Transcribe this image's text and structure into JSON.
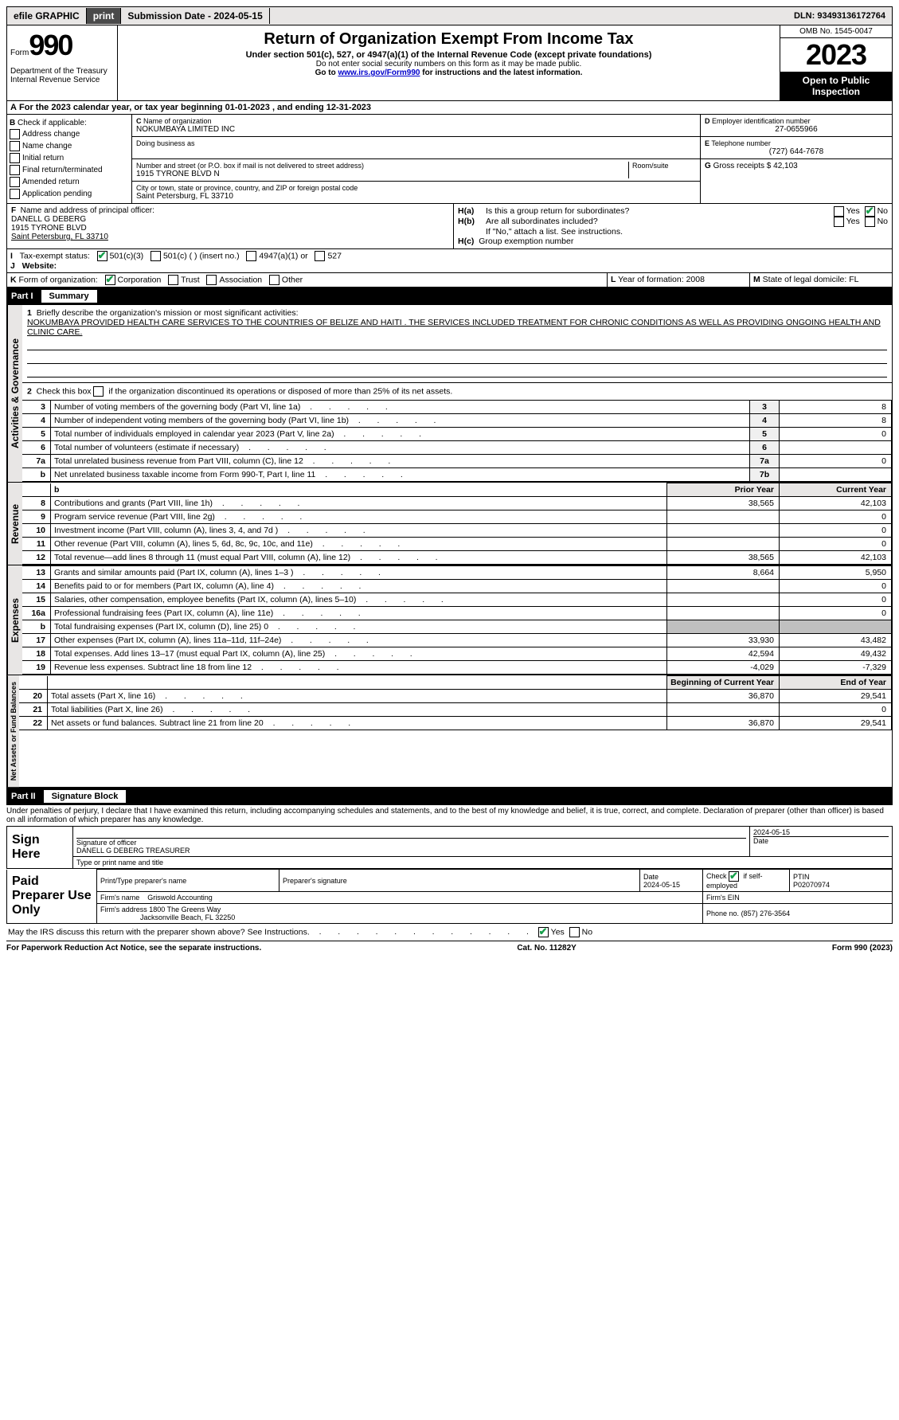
{
  "topbar": {
    "efile": "efile GRAPHIC",
    "print": "print",
    "subdate_label": "Submission Date - 2024-05-15",
    "dln": "DLN: 93493136172764"
  },
  "header": {
    "form": "Form",
    "formno": "990",
    "dept": "Department of the Treasury Internal Revenue Service",
    "title": "Return of Organization Exempt From Income Tax",
    "sub": "Under section 501(c), 527, or 4947(a)(1) of the Internal Revenue Code (except private foundations)",
    "note1": "Do not enter social security numbers on this form as it may be made public.",
    "note2": "Go to ",
    "link": "www.irs.gov/Form990",
    "note3": " for instructions and the latest information.",
    "omb": "OMB No. 1545-0047",
    "year": "2023",
    "public": "Open to Public Inspection"
  },
  "periodA": "For the 2023 calendar year, or tax year beginning 01-01-2023    , and ending 12-31-2023",
  "B": {
    "title": "Check if applicable:",
    "items": [
      "Address change",
      "Name change",
      "Initial return",
      "Final return/terminated",
      "Amended return",
      "Application pending"
    ]
  },
  "C": {
    "namelabel": "Name of organization",
    "name": "NOKUMBAYA LIMITED INC",
    "dba": "Doing business as",
    "addrlabel": "Number and street (or P.O. box if mail is not delivered to street address)",
    "room": "Room/suite",
    "addr": "1915 TYRONE BLVD N",
    "citylabel": "City or town, state or province, country, and ZIP or foreign postal code",
    "city": "Saint Petersburg, FL  33710"
  },
  "D": {
    "label": "Employer identification number",
    "val": "27-0655966"
  },
  "E": {
    "label": "Telephone number",
    "val": "(727) 644-7678"
  },
  "G": {
    "label": "Gross receipts $",
    "val": "42,103"
  },
  "F": {
    "label": "Name and address of principal officer:",
    "name": "DANELL G DEBERG",
    "addr1": "1915 TYRONE BLVD",
    "addr2": "Saint Petersburg, FL  33710"
  },
  "H": {
    "a": "Is this a group return for subordinates?",
    "b": "Are all subordinates included?",
    "bnote": "If \"No,\" attach a list. See instructions.",
    "c": "Group exemption number",
    "yes": "Yes",
    "no": "No"
  },
  "I": {
    "label": "Tax-exempt status:",
    "opts": [
      "501(c)(3)",
      "501(c) (  ) (insert no.)",
      "4947(a)(1) or",
      "527"
    ]
  },
  "J": {
    "label": "Website:"
  },
  "K": {
    "label": "Form of organization:",
    "opts": [
      "Corporation",
      "Trust",
      "Association",
      "Other"
    ]
  },
  "L": {
    "label": "Year of formation:",
    "val": "2008"
  },
  "M": {
    "label": "State of legal domicile:",
    "val": "FL"
  },
  "part1": {
    "num": "Part I",
    "title": "Summary"
  },
  "vert": {
    "ag": "Activities & Governance",
    "rev": "Revenue",
    "exp": "Expenses",
    "na": "Net Assets or Fund Balances"
  },
  "line1": {
    "label": "Briefly describe the organization's mission or most significant activities:",
    "text": "NOKUMBAYA PROVIDED HEALTH CARE SERVICES TO THE COUNTRIES OF BELIZE AND HAITI . THE SERVICES INCLUDED TREATMENT FOR CHRONIC CONDITIONS AS WELL AS PROVIDING ONGOING HEALTH AND CLINIC CARE."
  },
  "line2": "Check this box       if the organization discontinued its operations or disposed of more than 25% of its net assets.",
  "lines_ag": [
    {
      "n": "3",
      "d": "Number of voting members of the governing body (Part VI, line 1a)",
      "b": "3",
      "v": "8"
    },
    {
      "n": "4",
      "d": "Number of independent voting members of the governing body (Part VI, line 1b)",
      "b": "4",
      "v": "8"
    },
    {
      "n": "5",
      "d": "Total number of individuals employed in calendar year 2023 (Part V, line 2a)",
      "b": "5",
      "v": "0"
    },
    {
      "n": "6",
      "d": "Total number of volunteers (estimate if necessary)",
      "b": "6",
      "v": ""
    },
    {
      "n": "7a",
      "d": "Total unrelated business revenue from Part VIII, column (C), line 12",
      "b": "7a",
      "v": "0"
    },
    {
      "n": "b",
      "d": "Net unrelated business taxable income from Form 990-T, Part I, line 11",
      "b": "7b",
      "v": ""
    }
  ],
  "yearhdr": {
    "prior": "Prior Year",
    "curr": "Current Year"
  },
  "lines_rev": [
    {
      "n": "8",
      "d": "Contributions and grants (Part VIII, line 1h)",
      "p": "38,565",
      "c": "42,103"
    },
    {
      "n": "9",
      "d": "Program service revenue (Part VIII, line 2g)",
      "p": "",
      "c": "0"
    },
    {
      "n": "10",
      "d": "Investment income (Part VIII, column (A), lines 3, 4, and 7d )",
      "p": "",
      "c": "0"
    },
    {
      "n": "11",
      "d": "Other revenue (Part VIII, column (A), lines 5, 6d, 8c, 9c, 10c, and 11e)",
      "p": "",
      "c": "0"
    },
    {
      "n": "12",
      "d": "Total revenue—add lines 8 through 11 (must equal Part VIII, column (A), line 12)",
      "p": "38,565",
      "c": "42,103"
    }
  ],
  "lines_exp": [
    {
      "n": "13",
      "d": "Grants and similar amounts paid (Part IX, column (A), lines 1–3 )",
      "p": "8,664",
      "c": "5,950"
    },
    {
      "n": "14",
      "d": "Benefits paid to or for members (Part IX, column (A), line 4)",
      "p": "",
      "c": "0"
    },
    {
      "n": "15",
      "d": "Salaries, other compensation, employee benefits (Part IX, column (A), lines 5–10)",
      "p": "",
      "c": "0"
    },
    {
      "n": "16a",
      "d": "Professional fundraising fees (Part IX, column (A), line 11e)",
      "p": "",
      "c": "0"
    },
    {
      "n": "b",
      "d": "Total fundraising expenses (Part IX, column (D), line 25) 0",
      "p": "SHADE",
      "c": "SHADE"
    },
    {
      "n": "17",
      "d": "Other expenses (Part IX, column (A), lines 11a–11d, 11f–24e)",
      "p": "33,930",
      "c": "43,482"
    },
    {
      "n": "18",
      "d": "Total expenses. Add lines 13–17 (must equal Part IX, column (A), line 25)",
      "p": "42,594",
      "c": "49,432"
    },
    {
      "n": "19",
      "d": "Revenue less expenses. Subtract line 18 from line 12",
      "p": "-4,029",
      "c": "-7,329"
    }
  ],
  "yearhdr2": {
    "prior": "Beginning of Current Year",
    "curr": "End of Year"
  },
  "lines_na": [
    {
      "n": "20",
      "d": "Total assets (Part X, line 16)",
      "p": "36,870",
      "c": "29,541"
    },
    {
      "n": "21",
      "d": "Total liabilities (Part X, line 26)",
      "p": "",
      "c": "0"
    },
    {
      "n": "22",
      "d": "Net assets or fund balances. Subtract line 21 from line 20",
      "p": "36,870",
      "c": "29,541"
    }
  ],
  "part2": {
    "num": "Part II",
    "title": "Signature Block"
  },
  "declaration": "Under penalties of perjury, I declare that I have examined this return, including accompanying schedules and statements, and to the best of my knowledge and belief, it is true, correct, and complete. Declaration of preparer (other than officer) is based on all information of which preparer has any knowledge.",
  "sign": {
    "here": "Sign Here",
    "siglabel": "Signature of officer",
    "date": "2024-05-15",
    "datelabel": "Date",
    "officer": "DANELL G DEBERG  TREASURER",
    "typelabel": "Type or print name and title"
  },
  "paid": {
    "title": "Paid Preparer Use Only",
    "namelabel": "Print/Type preparer's name",
    "siglabel": "Preparer's signature",
    "date": "2024-05-15",
    "check": "Check        if self-employed",
    "ptinlabel": "PTIN",
    "ptin": "P02070974",
    "firmlabel": "Firm's name",
    "firm": "Griswold Accounting",
    "einlabel": "Firm's EIN",
    "addrlabel": "Firm's address",
    "addr1": "1800 The Greens Way",
    "addr2": "Jacksonville Beach, FL  32250",
    "phonelabel": "Phone no.",
    "phone": "(857) 276-3564"
  },
  "discuss": "May the IRS discuss this return with the preparer shown above? See Instructions.",
  "footer": {
    "left": "For Paperwork Reduction Act Notice, see the separate instructions.",
    "mid": "Cat. No. 11282Y",
    "right": "Form 990 (2023)"
  }
}
